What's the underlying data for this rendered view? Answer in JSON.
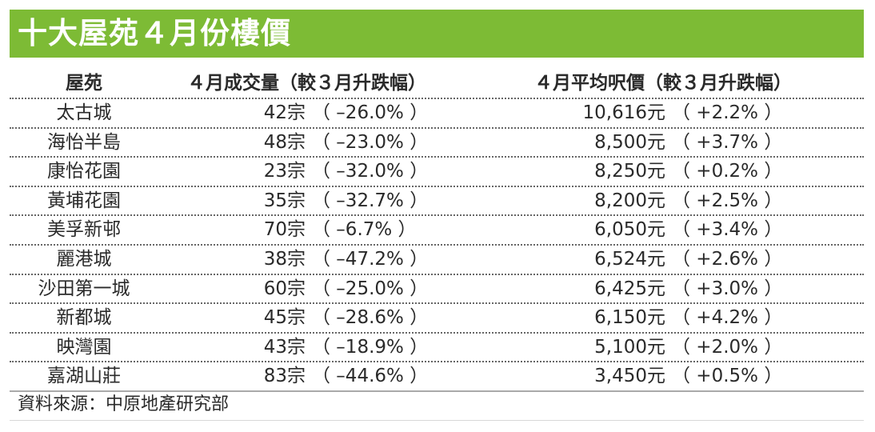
{
  "title": "十大屋苑４月份樓價",
  "headers": {
    "estate": "屋苑",
    "volume": "４月成交量（較３月升跌幅）",
    "price": "４月平均呎價（較３月升跌幅）"
  },
  "rows": [
    {
      "estate": "太古城",
      "volume": "42宗",
      "volume_change": "（ –26.0% ）",
      "price": "10,616元",
      "price_change": "（ +2.2% ）"
    },
    {
      "estate": "海怡半島",
      "volume": "48宗",
      "volume_change": "（ –23.0% ）",
      "price": "8,500元",
      "price_change": "（ +3.7% ）"
    },
    {
      "estate": "康怡花園",
      "volume": "23宗",
      "volume_change": "（ –32.0% ）",
      "price": "8,250元",
      "price_change": "（ +0.2% ）"
    },
    {
      "estate": "黃埔花園",
      "volume": "35宗",
      "volume_change": "（ –32.7% ）",
      "price": "8,200元",
      "price_change": "（ +2.5% ）"
    },
    {
      "estate": "美孚新邨",
      "volume": "70宗",
      "volume_change": "（ –6.7% ）",
      "price": "6,050元",
      "price_change": "（ +3.4% ）"
    },
    {
      "estate": "麗港城",
      "volume": "38宗",
      "volume_change": "（ –47.2% ）",
      "price": "6,524元",
      "price_change": "（ +2.6% ）"
    },
    {
      "estate": "沙田第一城",
      "volume": "60宗",
      "volume_change": "（ –25.0% ）",
      "price": "6,425元",
      "price_change": "（ +3.0% ）"
    },
    {
      "estate": "新都城",
      "volume": "45宗",
      "volume_change": "（ –28.6% ）",
      "price": "6,150元",
      "price_change": "（ +4.2% ）"
    },
    {
      "estate": "映灣園",
      "volume": "43宗",
      "volume_change": "（ –18.9% ）",
      "price": "5,100元",
      "price_change": "（ +2.0% ）"
    },
    {
      "estate": "嘉湖山莊",
      "volume": "83宗",
      "volume_change": "（ –44.6% ）",
      "price": "3,450元",
      "price_change": "（ +0.5% ）"
    }
  ],
  "source": "資料來源：中原地產研究部",
  "colors": {
    "title_bar": "#7dbb35",
    "title_text": "#ffffff",
    "body_text": "#2a2a2a"
  }
}
